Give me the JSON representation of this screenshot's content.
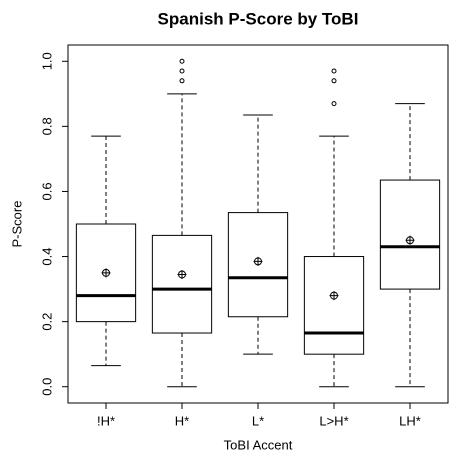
{
  "chart_data": {
    "type": "box",
    "title": "Spanish P-Score by ToBI",
    "xlabel": "ToBI Accent",
    "ylabel": "P-Score",
    "categories": [
      "!H*",
      "H*",
      "L*",
      "L>H*",
      "LH*"
    ],
    "whisker_low": [
      0.065,
      0,
      0.1,
      0,
      0
    ],
    "q1": [
      0.2,
      0.165,
      0.215,
      0.1,
      0.3
    ],
    "median": [
      0.28,
      0.3,
      0.335,
      0.165,
      0.43
    ],
    "q3": [
      0.5,
      0.465,
      0.535,
      0.4,
      0.635
    ],
    "whisker_high": [
      0.77,
      0.9,
      0.835,
      0.77,
      0.87
    ],
    "means": [
      0.35,
      0.345,
      0.385,
      0.28,
      0.45
    ],
    "outliers": [
      [],
      [
        1.0,
        0.97,
        0.94
      ],
      [],
      [
        0.97,
        0.94,
        0.87
      ],
      []
    ],
    "color": "#000000",
    "ylim": [
      -0.05,
      1.05
    ],
    "yticks": [
      {
        "value": 0,
        "label": "0.0"
      },
      0.2,
      0.4,
      0.6,
      0.8,
      {
        "value": 1,
        "label": "1.0"
      }
    ]
  }
}
